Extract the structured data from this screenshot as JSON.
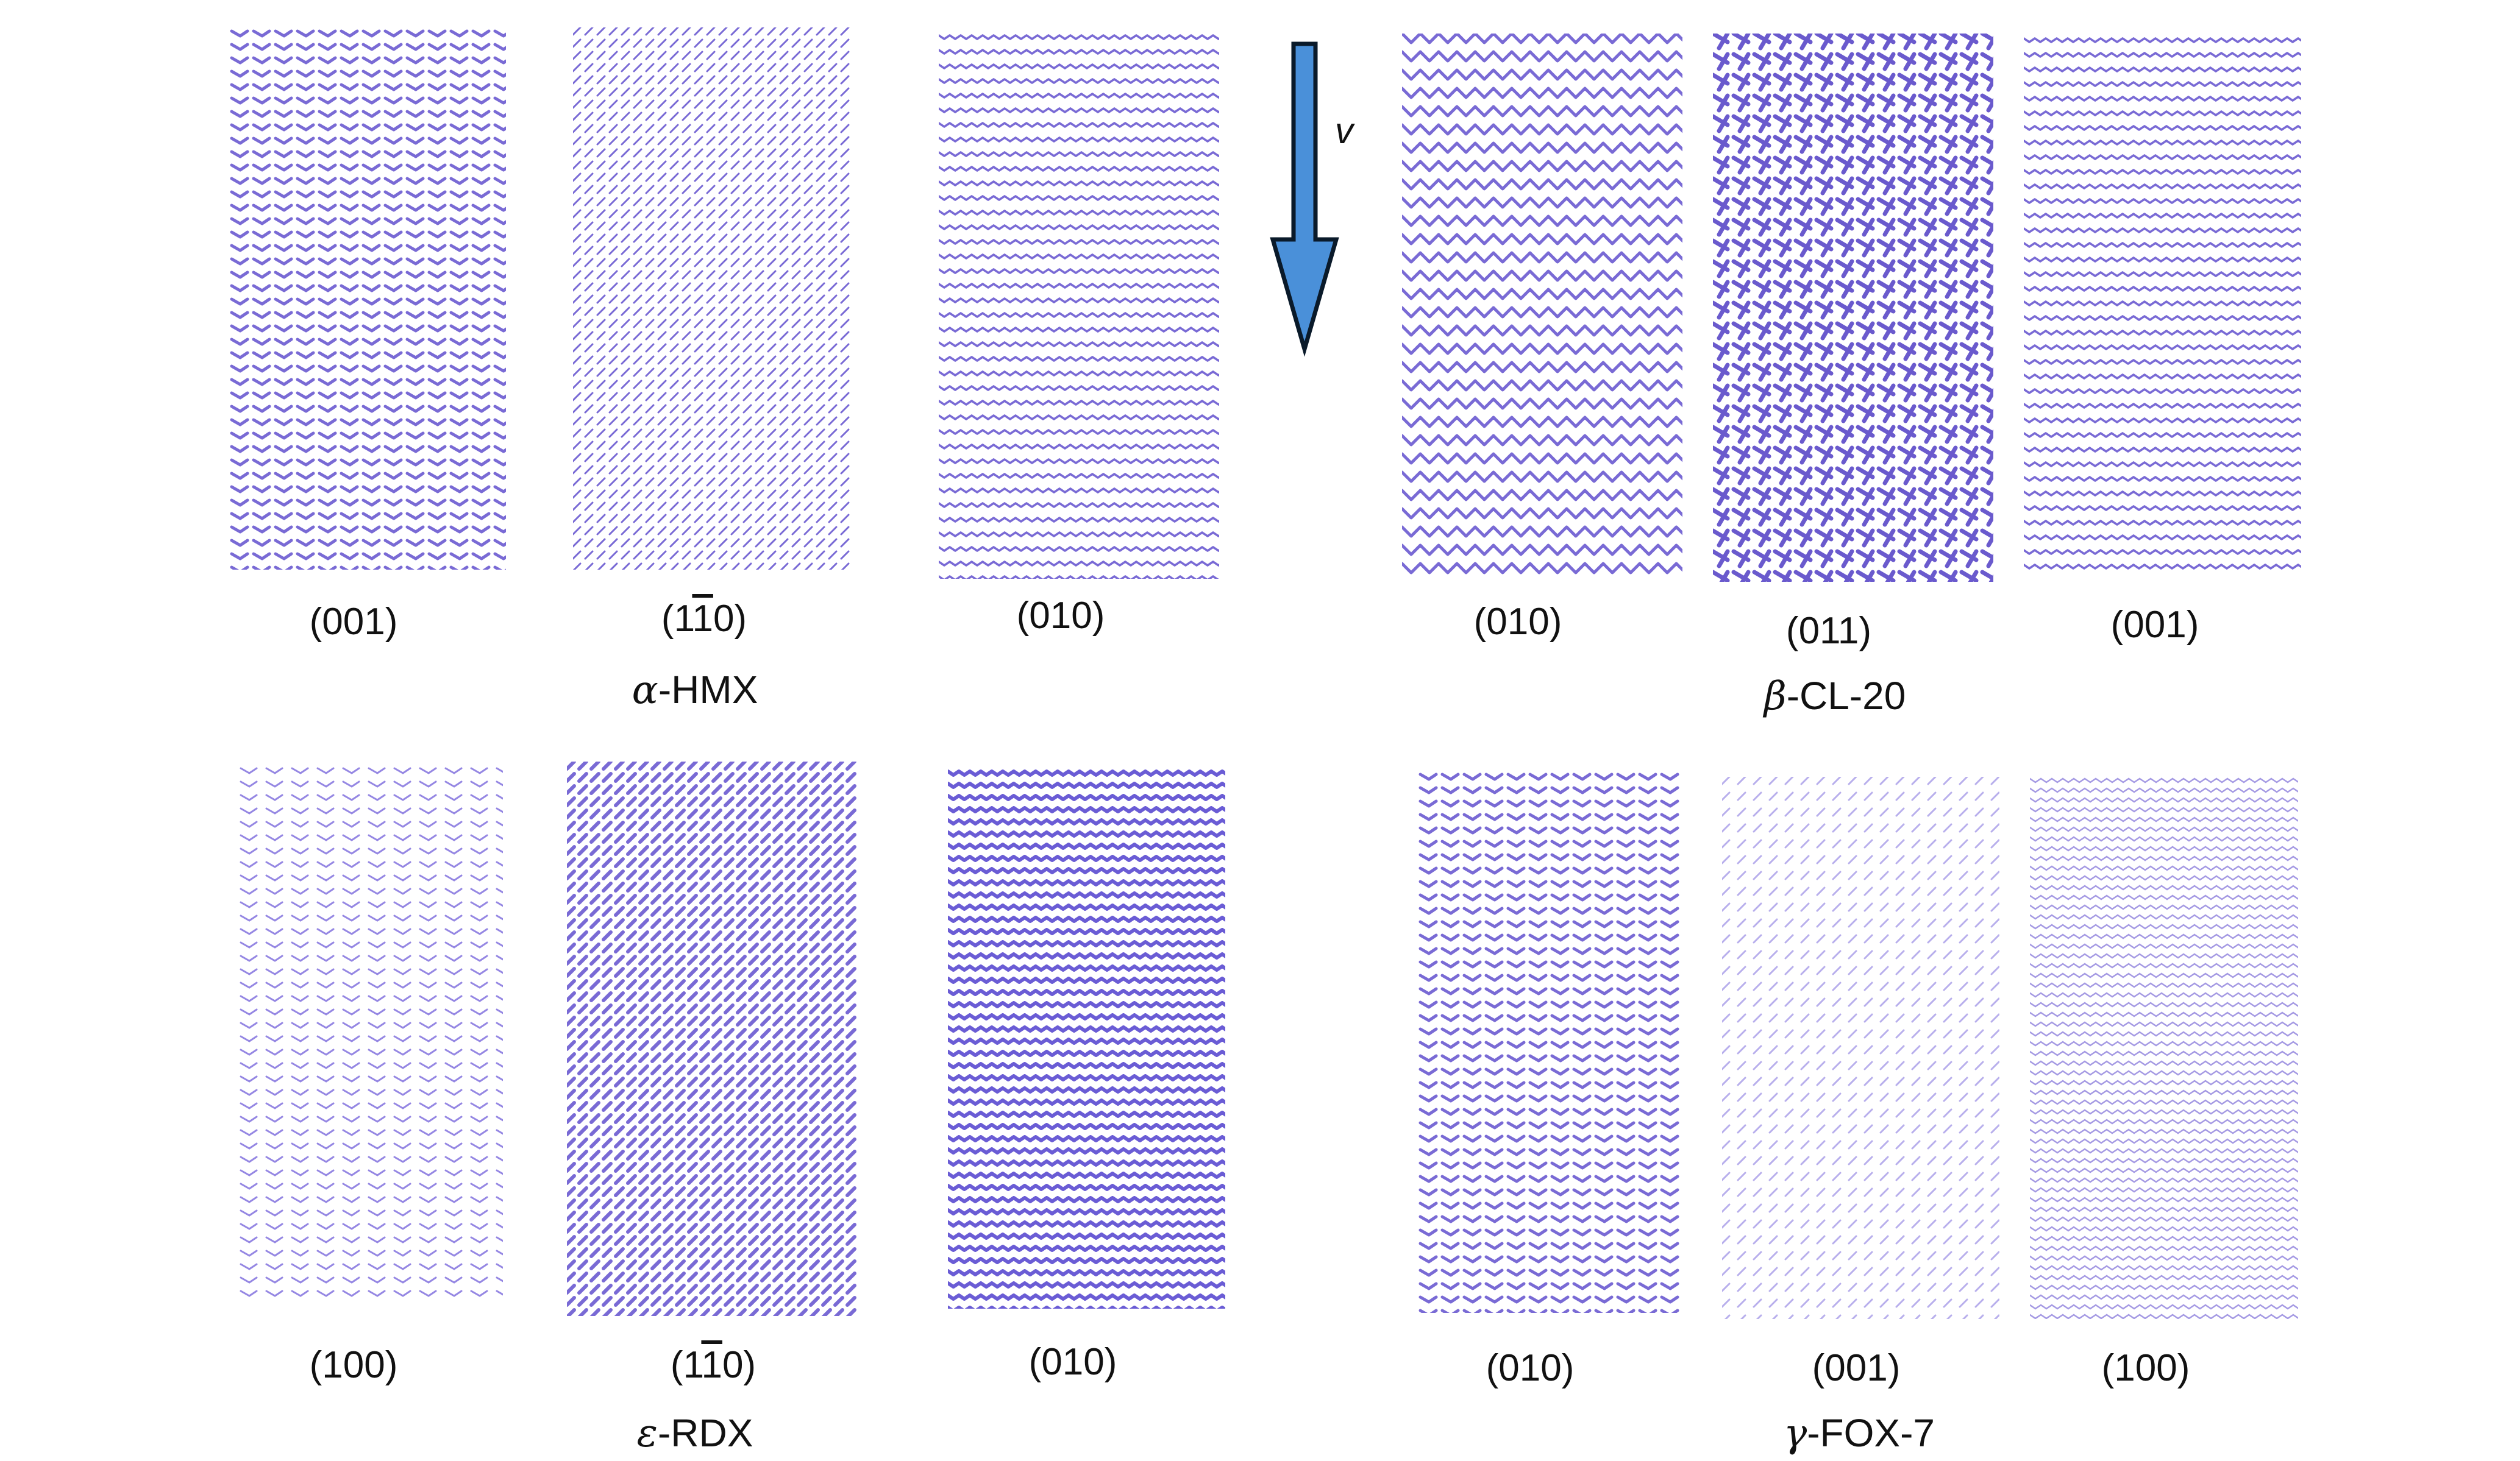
{
  "velocity_label": "v",
  "panels": [
    {
      "pattern": "dense-columns",
      "color": "#6a5ad0",
      "label": {
        "pre": "(001)",
        "bar": "",
        "post": ""
      }
    },
    {
      "pattern": "diagonal",
      "color": "#6a5ad0",
      "label": {
        "pre": "(1",
        "bar": "1",
        "post": "0)"
      }
    },
    {
      "pattern": "wavy-rows",
      "color": "#6a5ad0",
      "label": {
        "pre": "(010)",
        "bar": "",
        "post": ""
      }
    },
    {
      "pattern": "herringbone",
      "color": "#6a5ad0",
      "label": {
        "pre": "(010)",
        "bar": "",
        "post": ""
      }
    },
    {
      "pattern": "crosshatch",
      "color": "#5a48c8",
      "label": {
        "pre": "(011)",
        "bar": "",
        "post": ""
      }
    },
    {
      "pattern": "striped-rows",
      "color": "#6a5ad0",
      "label": {
        "pre": "(001)",
        "bar": "",
        "post": ""
      }
    },
    {
      "pattern": "dotted-columns",
      "color": "#8a7ae0",
      "label": {
        "pre": "(100)",
        "bar": "",
        "post": ""
      }
    },
    {
      "pattern": "diagonal-dense",
      "color": "#6a5ad0",
      "label": {
        "pre": "(1",
        "bar": "1",
        "post": "0)"
      }
    },
    {
      "pattern": "solid-rows",
      "color": "#5a4ad0",
      "label": {
        "pre": "(010)",
        "bar": "",
        "post": ""
      }
    },
    {
      "pattern": "vertical-stripes",
      "color": "#6a5ad0",
      "label": {
        "pre": "(010)",
        "bar": "",
        "post": ""
      }
    },
    {
      "pattern": "sparse-diagonal",
      "color": "#b0a6ea",
      "label": {
        "pre": "(001)",
        "bar": "",
        "post": ""
      }
    },
    {
      "pattern": "fine-rows",
      "color": "#9a8ee0",
      "label": {
        "pre": "(100)",
        "bar": "",
        "post": ""
      }
    }
  ],
  "titles": [
    {
      "greek": "α",
      "rest": "-HMX"
    },
    {
      "greek": "β",
      "rest": "-CL-20"
    },
    {
      "greek": "ε",
      "rest": "-RDX"
    },
    {
      "greek": "γ",
      "rest": "-FOX-7"
    }
  ],
  "colors": {
    "arrow_fill": "#4a90d9",
    "arrow_stroke": "#0a1a2a"
  }
}
